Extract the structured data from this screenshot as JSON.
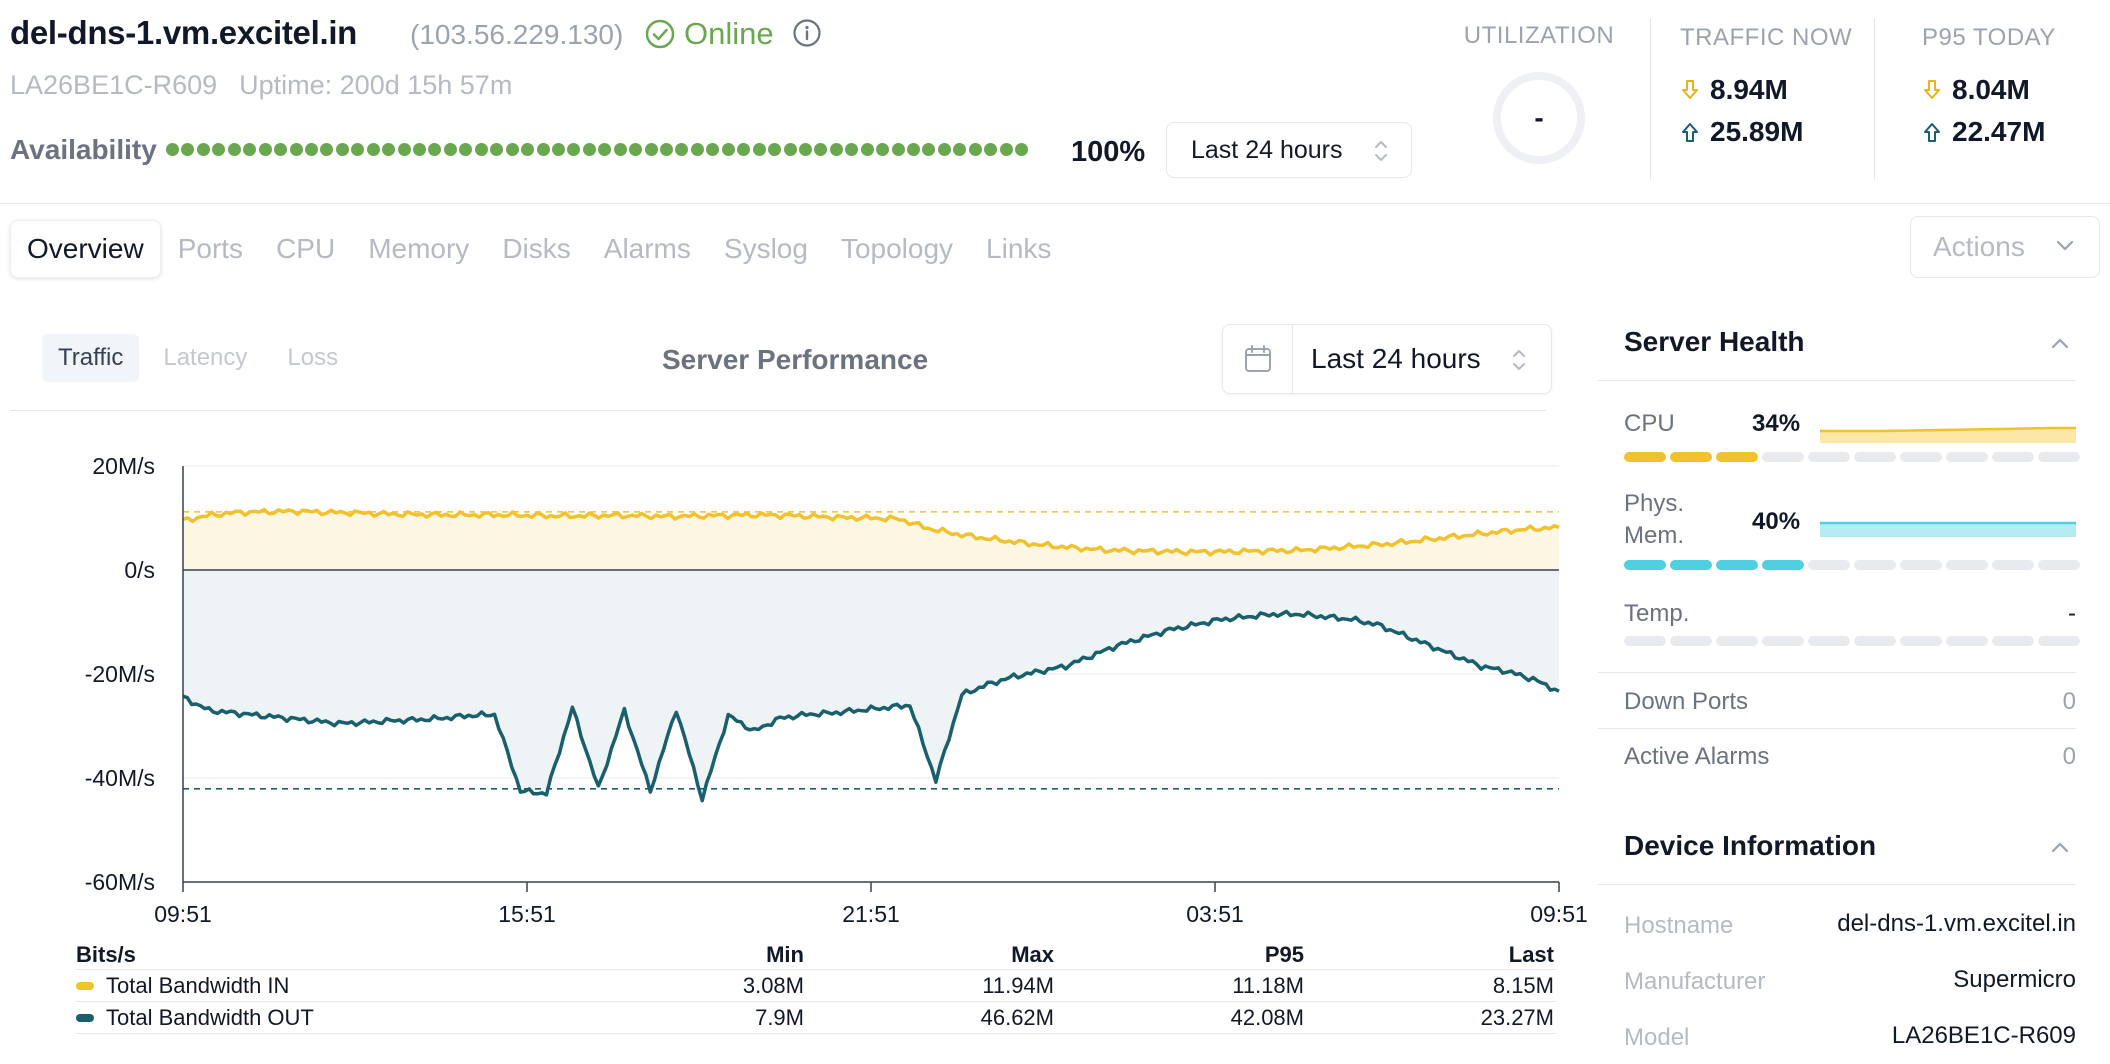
{
  "header": {
    "hostname": "del-dns-1.vm.excitel.in",
    "ip": "(103.56.229.130)",
    "status": "Online",
    "serial": "LA26BE1C-R609",
    "uptime": "Uptime: 200d 15h 57m",
    "availability_label": "Availability",
    "availability_pct": "100%",
    "range": "Last 24 hours"
  },
  "stats": {
    "utilization_label": "UTILIZATION",
    "utilization_value": "-",
    "traffic_now_label": "TRAFFIC NOW",
    "traffic_now_down": "8.94M",
    "traffic_now_up": "25.89M",
    "p95_label": "P95 TODAY",
    "p95_down": "8.04M",
    "p95_up": "22.47M"
  },
  "tabs": [
    "Overview",
    "Ports",
    "CPU",
    "Memory",
    "Disks",
    "Alarms",
    "Syslog",
    "Topology",
    "Links"
  ],
  "actions_label": "Actions",
  "chart_panel": {
    "subtabs": [
      "Traffic",
      "Latency",
      "Loss"
    ],
    "title": "Server Performance",
    "range": "Last 24 hours"
  },
  "chart_data": {
    "type": "area",
    "ylim": [
      -60,
      20
    ],
    "y_ticks": [
      "20M/s",
      "0/s",
      "-20M/s",
      "-40M/s",
      "-60M/s"
    ],
    "x_ticks": [
      "09:51",
      "15:51",
      "21:51",
      "03:51",
      "09:51"
    ],
    "unit": "M/s",
    "series": [
      {
        "name": "Total Bandwidth IN",
        "color": "#f2c12e",
        "p95": 11.18,
        "values": [
          9.5,
          10.6,
          11.1,
          11.2,
          11.3,
          11.1,
          11.0,
          10.8,
          10.7,
          10.6,
          10.6,
          10.6,
          10.5,
          10.4,
          10.4,
          10.5,
          10.4,
          10.3,
          10.4,
          10.5,
          10.6,
          10.5,
          10.3,
          10.1,
          10.0,
          9.8,
          8.0,
          6.9,
          6.1,
          5.4,
          4.8,
          4.3,
          3.9,
          3.7,
          3.6,
          3.5,
          3.5,
          3.6,
          3.7,
          3.8,
          4.2,
          4.6,
          5.0,
          5.6,
          6.2,
          6.8,
          7.4,
          7.9,
          8.2
        ]
      },
      {
        "name": "Total Bandwidth OUT",
        "color": "#1a5f6e",
        "p95": -42.08,
        "values": [
          -24.5,
          -27.0,
          -27.5,
          -28.0,
          -28.5,
          -29.0,
          -29.5,
          -29.3,
          -29.0,
          -28.8,
          -28.5,
          -28.0,
          -27.8,
          -42.5,
          -43.0,
          -26.5,
          -42.0,
          -27.0,
          -42.5,
          -26.8,
          -44.0,
          -28.0,
          -31.0,
          -28.5,
          -27.8,
          -27.5,
          -27.0,
          -26.5,
          -26.0,
          -40.5,
          -24.0,
          -22.0,
          -20.5,
          -19.5,
          -18.5,
          -16.5,
          -14.5,
          -13.0,
          -11.5,
          -10.5,
          -9.5,
          -9.0,
          -8.5,
          -8.5,
          -9.0,
          -9.5,
          -10.5,
          -12.5,
          -14.5,
          -16.5,
          -18.5,
          -19.5,
          -21.0,
          -23.3
        ]
      }
    ]
  },
  "legend": {
    "head": [
      "Bits/s",
      "Min",
      "Max",
      "P95",
      "Last"
    ],
    "rows": [
      {
        "name": "Total Bandwidth IN",
        "min": "3.08M",
        "max": "11.94M",
        "p95": "11.18M",
        "last": "8.15M",
        "color": "#f2c12e"
      },
      {
        "name": "Total Bandwidth OUT",
        "min": "7.9M",
        "max": "46.62M",
        "p95": "42.08M",
        "last": "23.27M",
        "color": "#1a5f6e"
      }
    ]
  },
  "server_health": {
    "title": "Server Health",
    "cpu_label": "CPU",
    "cpu_value": "34%",
    "cpu_level": 0.34,
    "mem_label_1": "Phys.",
    "mem_label_2": "Mem.",
    "mem_value": "40%",
    "mem_level": 0.4,
    "temp_label": "Temp.",
    "temp_value": "-",
    "down_ports_label": "Down Ports",
    "down_ports_value": "0",
    "alarms_label": "Active Alarms",
    "alarms_value": "0"
  },
  "device_info": {
    "title": "Device Information",
    "hostname_label": "Hostname",
    "hostname_value": "del-dns-1.vm.excitel.in",
    "manufacturer_label": "Manufacturer",
    "manufacturer_value": "Supermicro",
    "model_label": "Model",
    "model_value": "LA26BE1C-R609"
  },
  "colors": {
    "online": "#6aa84f",
    "traffic_in": "#f2c12e",
    "traffic_out": "#1a5f6e",
    "cpu": "#f2c12e",
    "memory": "#4fcfdf"
  }
}
